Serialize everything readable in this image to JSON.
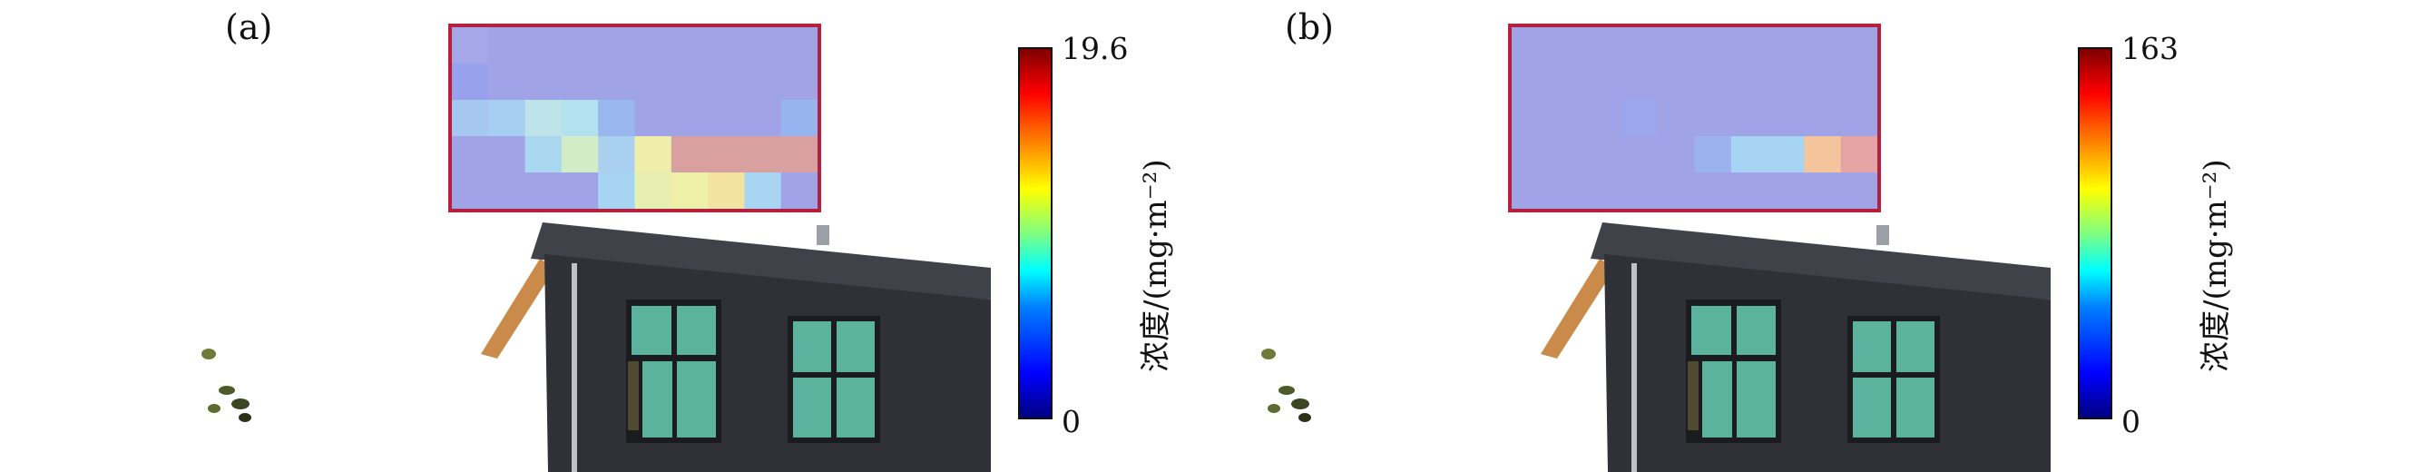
{
  "panels": [
    {
      "label": "(a)",
      "colorbar": {
        "max": "19.6",
        "min": "0",
        "title": "浓度/(mg·m⁻²)"
      },
      "heatmap_colors": [
        [
          "#a4a8e8",
          "#a0a4e6",
          "#a0a4e6",
          "#a0a4e6",
          "#a0a4e6",
          "#a0a4e6",
          "#a0a4e6",
          "#a0a4e6",
          "#a0a4e6",
          "#a0a4e6"
        ],
        [
          "#98a2ec",
          "#a0a4e6",
          "#a0a4e6",
          "#a0a4e6",
          "#a0a4e6",
          "#a0a4e6",
          "#a0a4e6",
          "#a0a4e6",
          "#a0a4e6",
          "#a0a4e6"
        ],
        [
          "#a6c8f0",
          "#a6cdf2",
          "#bde3e8",
          "#b1e2ee",
          "#9ab6ee",
          "#a0a4e6",
          "#a0a4e6",
          "#a0a4e6",
          "#a0a4e6",
          "#96b4ee"
        ],
        [
          "#a0a4e6",
          "#a0a4e6",
          "#aad8f0",
          "#d1ecc6",
          "#aad0f0",
          "#eeeeaa",
          "#d8a0a0",
          "#d8a0a0",
          "#d8a0a0",
          "#d8a0a0"
        ],
        [
          "#a0a4e6",
          "#a0a4e6",
          "#a0a4e6",
          "#a0a4e6",
          "#a7d4f2",
          "#e6efb1",
          "#eef0a8",
          "#f2e3a0",
          "#a8d6f2",
          "#a0a4e6"
        ]
      ]
    },
    {
      "label": "(b)",
      "colorbar": {
        "max": "163",
        "min": "0",
        "title": "浓度/(mg·m⁻²)"
      },
      "heatmap_colors": [
        [
          "#a0a4e6",
          "#a0a4e6",
          "#a0a4e6",
          "#a0a4e6",
          "#a0a4e6",
          "#a0a4e6",
          "#a0a4e6",
          "#a0a4e6",
          "#a0a4e6",
          "#a0a4e6"
        ],
        [
          "#a0a4e6",
          "#a0a4e6",
          "#a0a4e6",
          "#a0a4e6",
          "#a0a4e6",
          "#a0a4e6",
          "#a0a4e6",
          "#a0a4e6",
          "#a0a4e6",
          "#a0a4e6"
        ],
        [
          "#a0a4e6",
          "#a0a4e6",
          "#a0a4e6",
          "#9ca6ec",
          "#a0a4e6",
          "#a0a4e6",
          "#a0a4e6",
          "#a0a4e6",
          "#a0a4e6",
          "#a0a4e6"
        ],
        [
          "#a0a4e6",
          "#a0a4e6",
          "#a0a4e6",
          "#a0a4e6",
          "#a0a4e6",
          "#9cb2ee",
          "#a6d4f2",
          "#a6d4f2",
          "#f4c49c",
          "#e4a4a4"
        ],
        [
          "#a0a4e6",
          "#a0a4e6",
          "#a0a4e6",
          "#a0a4e6",
          "#a0a4e6",
          "#a0a4e6",
          "#a0a4e6",
          "#a0a4e6",
          "#a0a4e6",
          "#a0a4e6"
        ]
      ]
    }
  ],
  "colors": {
    "roof": "#3f4248",
    "wall": "#2f3136",
    "window": "#5bb39d",
    "frame": "#1a1c1f",
    "box_border": "#b3213f",
    "eave": "#c98a4a"
  }
}
